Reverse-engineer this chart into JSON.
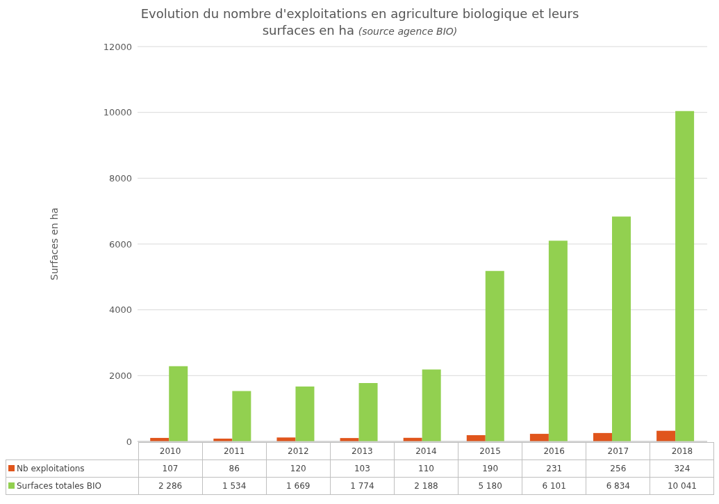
{
  "chart_data": {
    "type": "bar",
    "title": "Evolution du nombre d'exploitations en agriculture biologique et leurs surfaces en ha",
    "annotations": [
      "(source agence BIO)"
    ],
    "ylabel": "Surfaces en ha",
    "categories": [
      "2010",
      "2011",
      "2012",
      "2013",
      "2014",
      "2015",
      "2016",
      "2017",
      "2018"
    ],
    "series": [
      {
        "name": "Nb exploitations",
        "color": "#e0551c",
        "values": [
          107,
          86,
          120,
          103,
          110,
          190,
          231,
          256,
          324
        ],
        "value_labels": [
          "107",
          "86",
          "120",
          "103",
          "110",
          "190",
          "231",
          "256",
          "324"
        ]
      },
      {
        "name": "Surfaces totales BIO",
        "color": "#92d050",
        "values": [
          2286,
          1534,
          1669,
          1774,
          2188,
          5180,
          6101,
          6834,
          10041
        ],
        "value_labels": [
          "2 286",
          "1 534",
          "1 669",
          "1 774",
          "2 188",
          "5 180",
          "6 101",
          "6 834",
          "10 041"
        ]
      }
    ],
    "ylim": [
      0,
      12000
    ],
    "yticks": [
      0,
      2000,
      4000,
      6000,
      8000,
      10000,
      12000
    ],
    "grid": "y",
    "legend": "bottom left"
  }
}
